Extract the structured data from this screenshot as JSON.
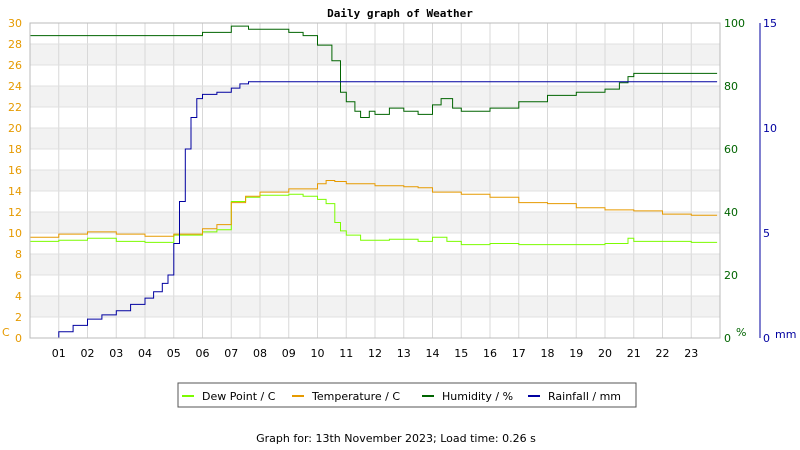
{
  "chart_data": {
    "type": "line",
    "title": "Daily graph of Weather",
    "footer": "Graph for: 13th November 2023; Load time: 0.26 s",
    "x_axis": {
      "range": [
        0,
        24
      ],
      "ticks": [
        "01",
        "02",
        "03",
        "04",
        "05",
        "06",
        "07",
        "08",
        "09",
        "10",
        "11",
        "12",
        "13",
        "14",
        "15",
        "16",
        "17",
        "18",
        "19",
        "20",
        "21",
        "22",
        "23"
      ]
    },
    "axes": {
      "temp": {
        "range": [
          0,
          30
        ],
        "unit": "C",
        "color": "#e69a00",
        "ticks": [
          "0",
          "2",
          "4",
          "6",
          "8",
          "10",
          "12",
          "14",
          "16",
          "18",
          "20",
          "22",
          "24",
          "26",
          "28",
          "30"
        ]
      },
      "humidity": {
        "range": [
          0,
          100
        ],
        "unit": "%",
        "color": "#006400",
        "ticks": [
          "0",
          "20",
          "40",
          "60",
          "80",
          "100"
        ]
      },
      "rain": {
        "range": [
          0,
          15
        ],
        "unit": "mm",
        "color": "#0000a0",
        "ticks": [
          "0",
          "5",
          "10",
          "15"
        ]
      }
    },
    "grid": true,
    "legend_position": "bottom",
    "series": [
      {
        "name": "Dew Point / C",
        "axis": "temp",
        "color": "#7cfc00",
        "x": [
          0,
          1,
          2,
          3,
          4,
          5,
          6,
          6.5,
          7,
          7.5,
          8,
          9,
          9.5,
          10,
          10.3,
          10.6,
          10.8,
          11,
          11.5,
          12,
          12.5,
          13,
          13.5,
          14,
          14.5,
          15,
          16,
          17,
          18,
          19,
          20,
          20.8,
          21,
          22,
          23,
          23.9
        ],
        "y": [
          9.2,
          9.3,
          9.5,
          9.2,
          9.1,
          9.8,
          10.1,
          10.3,
          13.0,
          13.4,
          13.6,
          13.7,
          13.5,
          13.2,
          12.8,
          11.0,
          10.2,
          9.8,
          9.3,
          9.3,
          9.4,
          9.4,
          9.2,
          9.6,
          9.2,
          8.9,
          9.0,
          8.9,
          8.9,
          8.9,
          9.0,
          9.5,
          9.2,
          9.2,
          9.1,
          9.1
        ]
      },
      {
        "name": "Temperature / C",
        "axis": "temp",
        "color": "#e69a00",
        "x": [
          0,
          1,
          2,
          3,
          4,
          5,
          6,
          6.5,
          7,
          7.5,
          8,
          9,
          10,
          10.3,
          10.6,
          11,
          12,
          13,
          13.5,
          14,
          15,
          16,
          17,
          18,
          19,
          20,
          21,
          22,
          23,
          23.9
        ],
        "y": [
          9.6,
          9.9,
          10.1,
          9.9,
          9.7,
          9.9,
          10.4,
          10.8,
          12.9,
          13.5,
          13.9,
          14.2,
          14.7,
          15.0,
          14.9,
          14.7,
          14.5,
          14.4,
          14.3,
          13.9,
          13.7,
          13.4,
          12.9,
          12.8,
          12.4,
          12.2,
          12.1,
          11.8,
          11.7,
          11.7
        ]
      },
      {
        "name": "Humidity / %",
        "axis": "humidity",
        "color": "#006400",
        "x": [
          0,
          1,
          2,
          3,
          4,
          5,
          6,
          6.5,
          7,
          7.3,
          7.6,
          8,
          9,
          9.5,
          10,
          10.5,
          10.8,
          11,
          11.3,
          11.5,
          11.8,
          12,
          12.5,
          13,
          13.5,
          14,
          14.3,
          14.7,
          15,
          16,
          17,
          18,
          19,
          20,
          20.5,
          20.8,
          21,
          21.5,
          22,
          23,
          23.9
        ],
        "y": [
          96,
          96,
          96,
          96,
          96,
          96,
          97,
          97,
          99,
          99,
          98,
          98,
          97,
          96,
          93,
          88,
          78,
          75,
          72,
          70,
          72,
          71,
          73,
          72,
          71,
          74,
          76,
          73,
          72,
          73,
          75,
          77,
          78,
          79,
          81,
          83,
          84,
          84,
          84,
          84,
          84
        ]
      },
      {
        "name": "Rainfall / mm",
        "axis": "rain",
        "color": "#0000a0",
        "x": [
          0,
          0.5,
          1,
          1.5,
          2,
          2.5,
          3,
          3.5,
          4,
          4.3,
          4.6,
          4.8,
          5,
          5.2,
          5.4,
          5.6,
          5.8,
          6,
          6.5,
          7,
          7.3,
          7.6,
          8,
          9,
          10,
          12,
          15,
          18,
          21,
          23.9
        ],
        "y": [
          0,
          0,
          0.3,
          0.6,
          0.9,
          1.1,
          1.3,
          1.6,
          1.9,
          2.2,
          2.6,
          3.0,
          4.5,
          6.5,
          9.0,
          10.5,
          11.4,
          11.6,
          11.7,
          11.9,
          12.1,
          12.2,
          12.2,
          12.2,
          12.2,
          12.2,
          12.2,
          12.2,
          12.2,
          12.2
        ]
      }
    ]
  }
}
